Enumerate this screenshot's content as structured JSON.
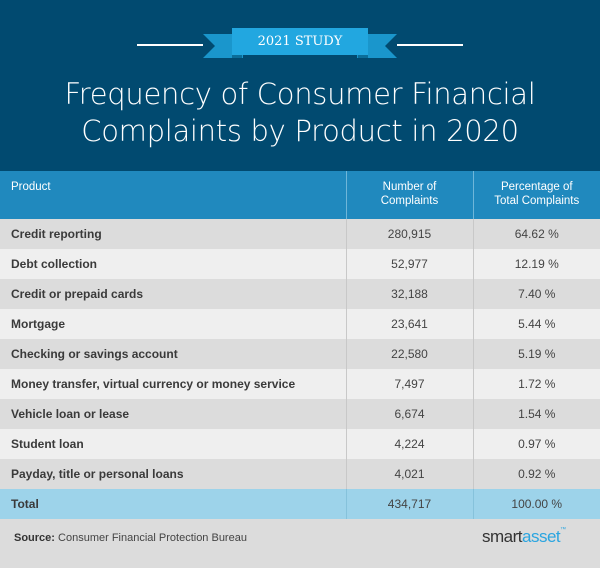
{
  "header": {
    "ribbon_label": "2021 STUDY",
    "title_line1": "Frequency of Consumer Financial",
    "title_line2": "Complaints by Product in 2020"
  },
  "table": {
    "columns": [
      "Product",
      "Number of Complaints",
      "Percentage of Total Complaints"
    ],
    "col2_line1": "Number of",
    "col2_line2": "Complaints",
    "col3_line1": "Percentage of",
    "col3_line2": "Total Complaints",
    "rows": [
      {
        "product": "Credit reporting",
        "count": "280,915",
        "pct": "64.62 %"
      },
      {
        "product": "Debt collection",
        "count": "52,977",
        "pct": "12.19 %"
      },
      {
        "product": "Credit or prepaid cards",
        "count": "32,188",
        "pct": "7.40 %"
      },
      {
        "product": "Mortgage",
        "count": "23,641",
        "pct": "5.44 %"
      },
      {
        "product": "Checking or savings account",
        "count": "22,580",
        "pct": "5.19 %"
      },
      {
        "product": "Money transfer, virtual currency or money service",
        "count": "7,497",
        "pct": "1.72 %"
      },
      {
        "product": "Vehicle loan or lease",
        "count": "6,674",
        "pct": "1.54 %"
      },
      {
        "product": "Student loan",
        "count": "4,224",
        "pct": "0.97 %"
      },
      {
        "product": "Payday, title or personal loans",
        "count": "4,021",
        "pct": "0.92 %"
      }
    ],
    "total": {
      "product": "Total",
      "count": "434,717",
      "pct": "100.00 %"
    }
  },
  "footer": {
    "source_label": "Source:",
    "source_text": " Consumer Financial Protection Bureau",
    "logo_part1": "smart",
    "logo_part2": "asset",
    "logo_tm": "™"
  },
  "colors": {
    "banner_bg": "#014a70",
    "ribbon": "#22a7e0",
    "header_row": "#2089be",
    "total_row": "#9dd3ea",
    "row_dark": "#dcdcdc",
    "row_light": "#efefef"
  },
  "chart_data": {
    "type": "table",
    "title": "Frequency of Consumer Financial Complaints by Product in 2020",
    "subtitle": "2021 STUDY",
    "columns": [
      "Product",
      "Number of Complaints",
      "Percentage of Total Complaints"
    ],
    "categories": [
      "Credit reporting",
      "Debt collection",
      "Credit or prepaid cards",
      "Mortgage",
      "Checking or savings account",
      "Money transfer, virtual currency or money service",
      "Vehicle loan or lease",
      "Student loan",
      "Payday, title or personal loans"
    ],
    "series": [
      {
        "name": "Number of Complaints",
        "values": [
          280915,
          52977,
          32188,
          23641,
          22580,
          7497,
          6674,
          4224,
          4021
        ]
      },
      {
        "name": "Percentage of Total Complaints",
        "values": [
          64.62,
          12.19,
          7.4,
          5.44,
          5.19,
          1.72,
          1.54,
          0.97,
          0.92
        ]
      }
    ],
    "total": {
      "count": 434717,
      "pct": 100.0
    },
    "source": "Consumer Financial Protection Bureau"
  }
}
